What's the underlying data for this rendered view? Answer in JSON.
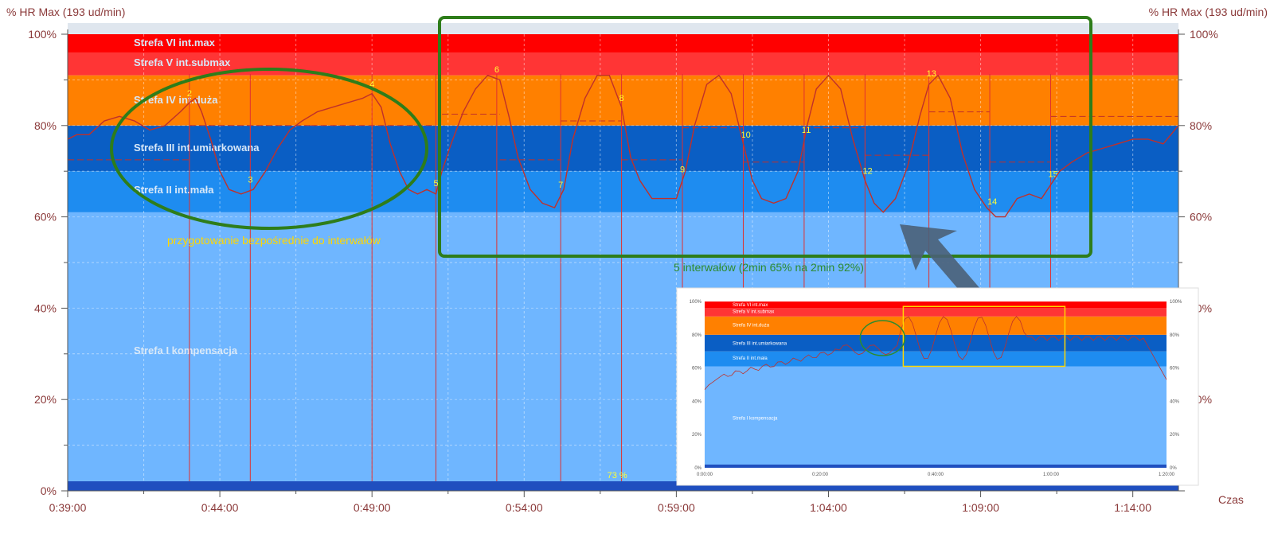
{
  "chart_data": {
    "type": "line",
    "ylabel_left": "% HR Max (193 ud/min)",
    "ylabel_right": "% HR Max (193 ud/min)",
    "xlabel": "Czas",
    "x_ticks": [
      "0:39:00",
      "0:44:00",
      "0:49:00",
      "0:54:00",
      "0:59:00",
      "1:04:00",
      "1:09:00",
      "1:14:00"
    ],
    "xlim_minutes": [
      39,
      75.5
    ],
    "y_ticks": [
      "0%",
      "20%",
      "40%",
      "60%",
      "80%",
      "100%"
    ],
    "ylim": [
      0,
      100
    ],
    "zones": [
      {
        "name": "Strefa I kompensacja",
        "from": 0,
        "to": 61,
        "color": "#6fb6ff"
      },
      {
        "name": "Strefa II int.mała",
        "from": 61,
        "to": 70,
        "color": "#1e8cf0"
      },
      {
        "name": "Strefa III int.umiarkowana",
        "from": 70,
        "to": 80,
        "color": "#0a5ec4"
      },
      {
        "name": "Strefa IV int.duża",
        "from": 80,
        "to": 91,
        "color": "#ff8000"
      },
      {
        "name": "Strefa V int.submax",
        "from": 91,
        "to": 96,
        "color": "#ff3535"
      },
      {
        "name": "Strefa VI int.max",
        "from": 96,
        "to": 100,
        "color": "#ff0000"
      }
    ],
    "series": [
      {
        "color": "#c0302a",
        "x": [
          39.0,
          39.3,
          39.7,
          40.2,
          40.7,
          41.2,
          41.7,
          42.2,
          42.7,
          43.0,
          43.2,
          43.4,
          43.7,
          44.0,
          44.3,
          44.7,
          45.1,
          45.5,
          45.9,
          46.3,
          46.7,
          47.2,
          47.7,
          48.2,
          48.7,
          49.0,
          49.3,
          49.6,
          49.9,
          50.2,
          50.5,
          50.8,
          51.1,
          51.3,
          51.6,
          52.0,
          52.4,
          52.8,
          53.2,
          53.5,
          53.8,
          54.2,
          54.6,
          55.0,
          55.3,
          55.6,
          56.0,
          56.4,
          56.8,
          57.2,
          57.5,
          57.8,
          58.2,
          58.6,
          59.0,
          59.3,
          59.6,
          60.0,
          60.4,
          60.8,
          61.2,
          61.5,
          61.8,
          62.2,
          62.6,
          63.0,
          63.3,
          63.6,
          64.0,
          64.4,
          64.8,
          65.2,
          65.5,
          65.8,
          66.2,
          66.6,
          67.0,
          67.3,
          67.6,
          68.0,
          68.4,
          68.8,
          69.2,
          69.5,
          69.8,
          70.2,
          70.6,
          71.0,
          71.3,
          71.6,
          72.0,
          72.5,
          73.0,
          73.5,
          74.0,
          74.5,
          75.0,
          75.5
        ],
        "values": [
          77,
          78,
          78,
          81,
          82,
          81,
          79,
          80,
          83,
          85,
          86,
          83,
          77,
          70,
          66,
          65,
          66,
          70,
          75,
          79,
          81,
          83,
          84,
          85,
          86,
          87,
          84,
          76,
          70,
          66,
          65,
          66,
          65,
          70,
          76,
          83,
          88,
          91,
          90,
          82,
          73,
          66,
          63,
          62,
          66,
          77,
          86,
          91,
          91,
          84,
          73,
          68,
          64,
          64,
          64,
          70,
          80,
          89,
          91,
          87,
          76,
          68,
          64,
          63,
          64,
          70,
          80,
          88,
          91,
          88,
          77,
          68,
          63,
          61,
          64,
          71,
          82,
          89,
          91,
          86,
          74,
          66,
          62,
          60,
          60,
          64,
          65,
          64,
          67,
          70,
          72,
          74,
          75,
          76,
          77,
          77,
          76,
          80
        ]
      }
    ],
    "markers": [
      {
        "label": "2",
        "x": 43.0
      },
      {
        "label": "3",
        "x": 45.0
      },
      {
        "label": "4",
        "x": 49.0
      },
      {
        "label": "5",
        "x": 51.1
      },
      {
        "label": "6",
        "x": 53.1
      },
      {
        "label": "7",
        "x": 55.2
      },
      {
        "label": "8",
        "x": 57.2
      },
      {
        "label": "9",
        "x": 59.2
      },
      {
        "label": "10",
        "x": 61.2
      },
      {
        "label": "11",
        "x": 63.2
      },
      {
        "label": "12",
        "x": 65.2
      },
      {
        "label": "13",
        "x": 67.3
      },
      {
        "label": "14",
        "x": 69.3
      },
      {
        "label": "15",
        "x": 71.3
      }
    ],
    "average_label": "73 %",
    "annotations": [
      {
        "text": "przygotowanie bezpośrednie do interwałów",
        "color": "#ffd700"
      },
      {
        "text": "5 interwałów (2min 65% na 2min 92%)",
        "color": "#2e8b2e"
      }
    ],
    "highlight_color": "#2e7d1a",
    "arrow_color": "#4a6078"
  },
  "inset": {
    "zones": [
      "Strefa VI int.max",
      "Strefa V int.submax",
      "Strefa IV int.duża",
      "Strefa III int.umiarkowana",
      "Strefa II int.mała",
      "Strefa I kompensacja"
    ],
    "y_ticks": [
      "100%",
      "80%",
      "60%",
      "40%",
      "20%",
      "0%"
    ],
    "x_ticks": [
      "0:00:00",
      "0:20:00",
      "0:40:00",
      "1:00:00",
      "1:20:00"
    ],
    "highlight_color": "#ffd700",
    "circle_color": "#2e8b2e"
  }
}
